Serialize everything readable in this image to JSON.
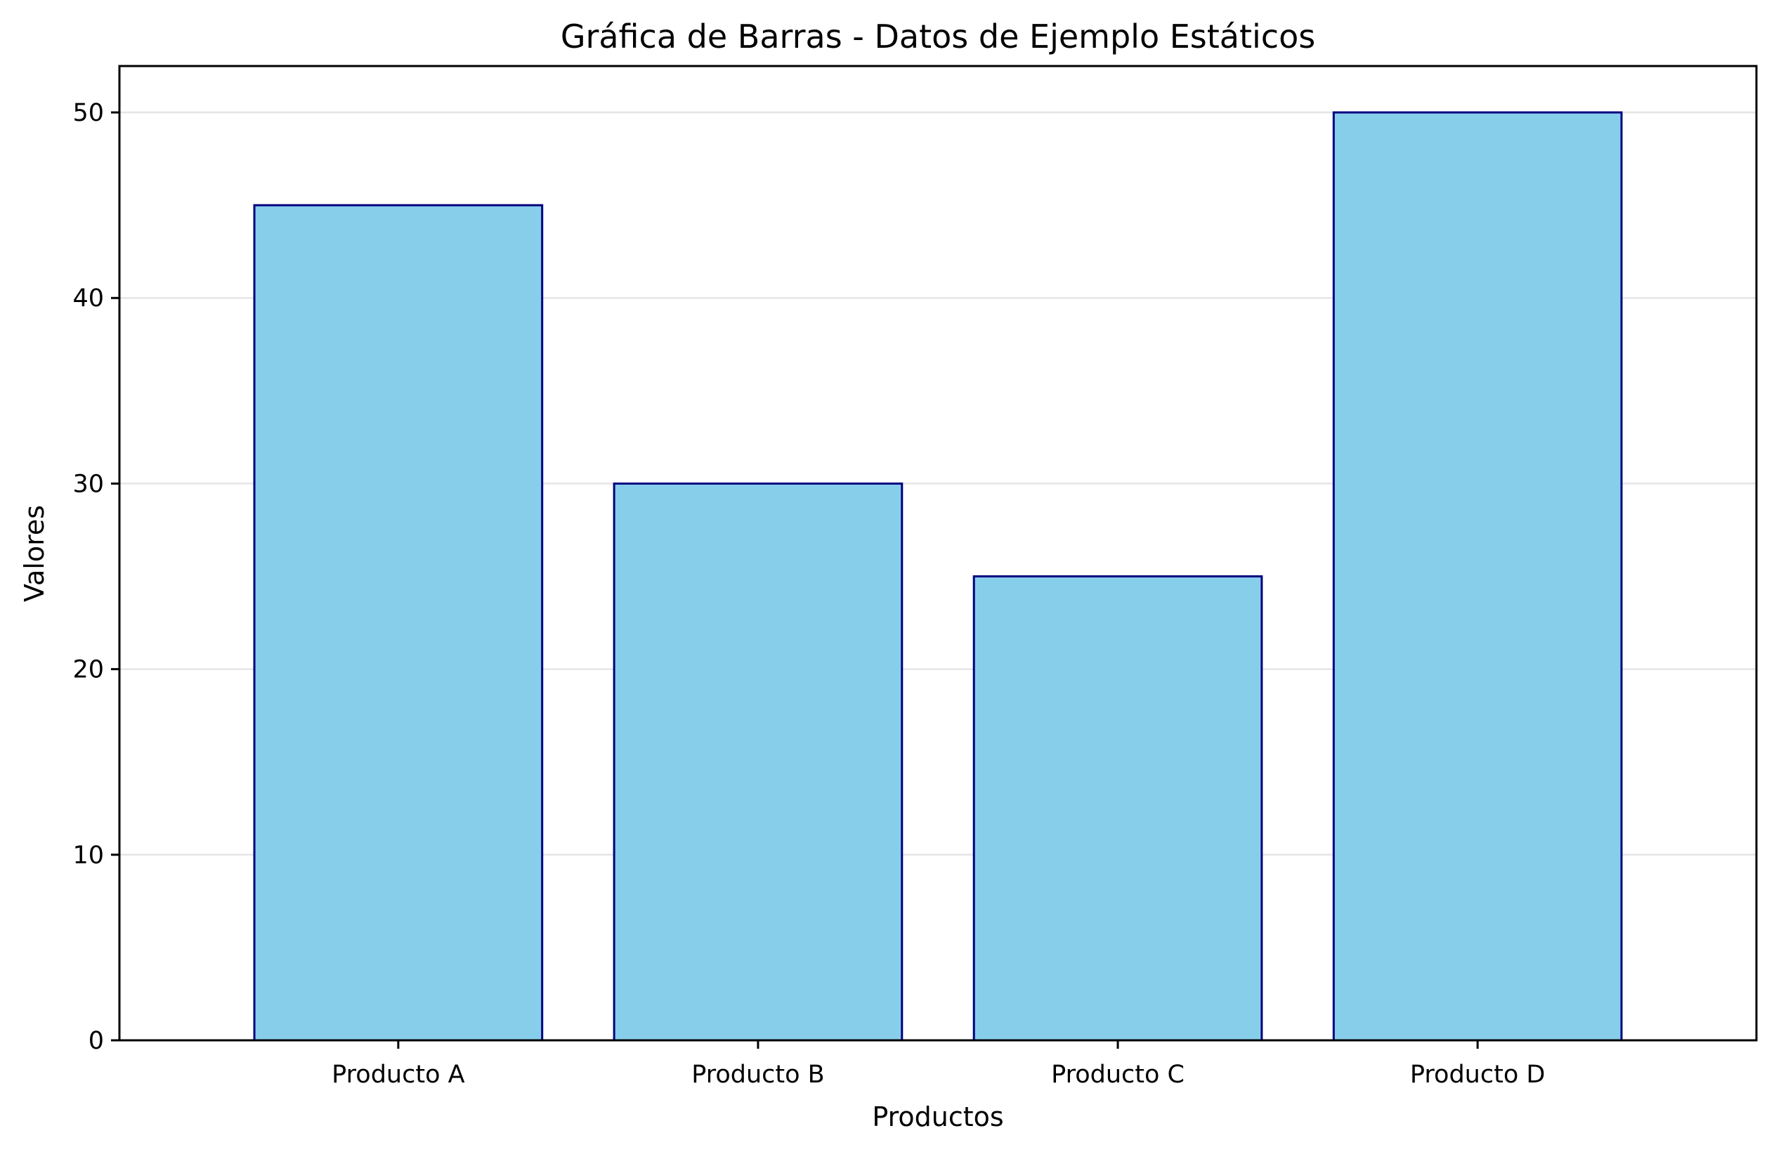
{
  "chart_data": {
    "type": "bar",
    "title": "Gráfica de Barras - Datos de Ejemplo Estáticos",
    "xlabel": "Productos",
    "ylabel": "Valores",
    "categories": [
      "Producto A",
      "Producto B",
      "Producto C",
      "Producto D"
    ],
    "values": [
      45,
      30,
      25,
      50
    ],
    "ylim": [
      0,
      52.5
    ],
    "yticks": [
      0,
      10,
      20,
      30,
      40,
      50
    ],
    "ytick_labels": [
      "0",
      "10",
      "20",
      "30",
      "40",
      "50"
    ],
    "grid": "horizontal",
    "legend": "none",
    "bar_color": "#87CEEB",
    "bar_edge_color": "#000080",
    "grid_color": "#e5e5e5",
    "axis_color": "#000000",
    "background": "#ffffff"
  }
}
